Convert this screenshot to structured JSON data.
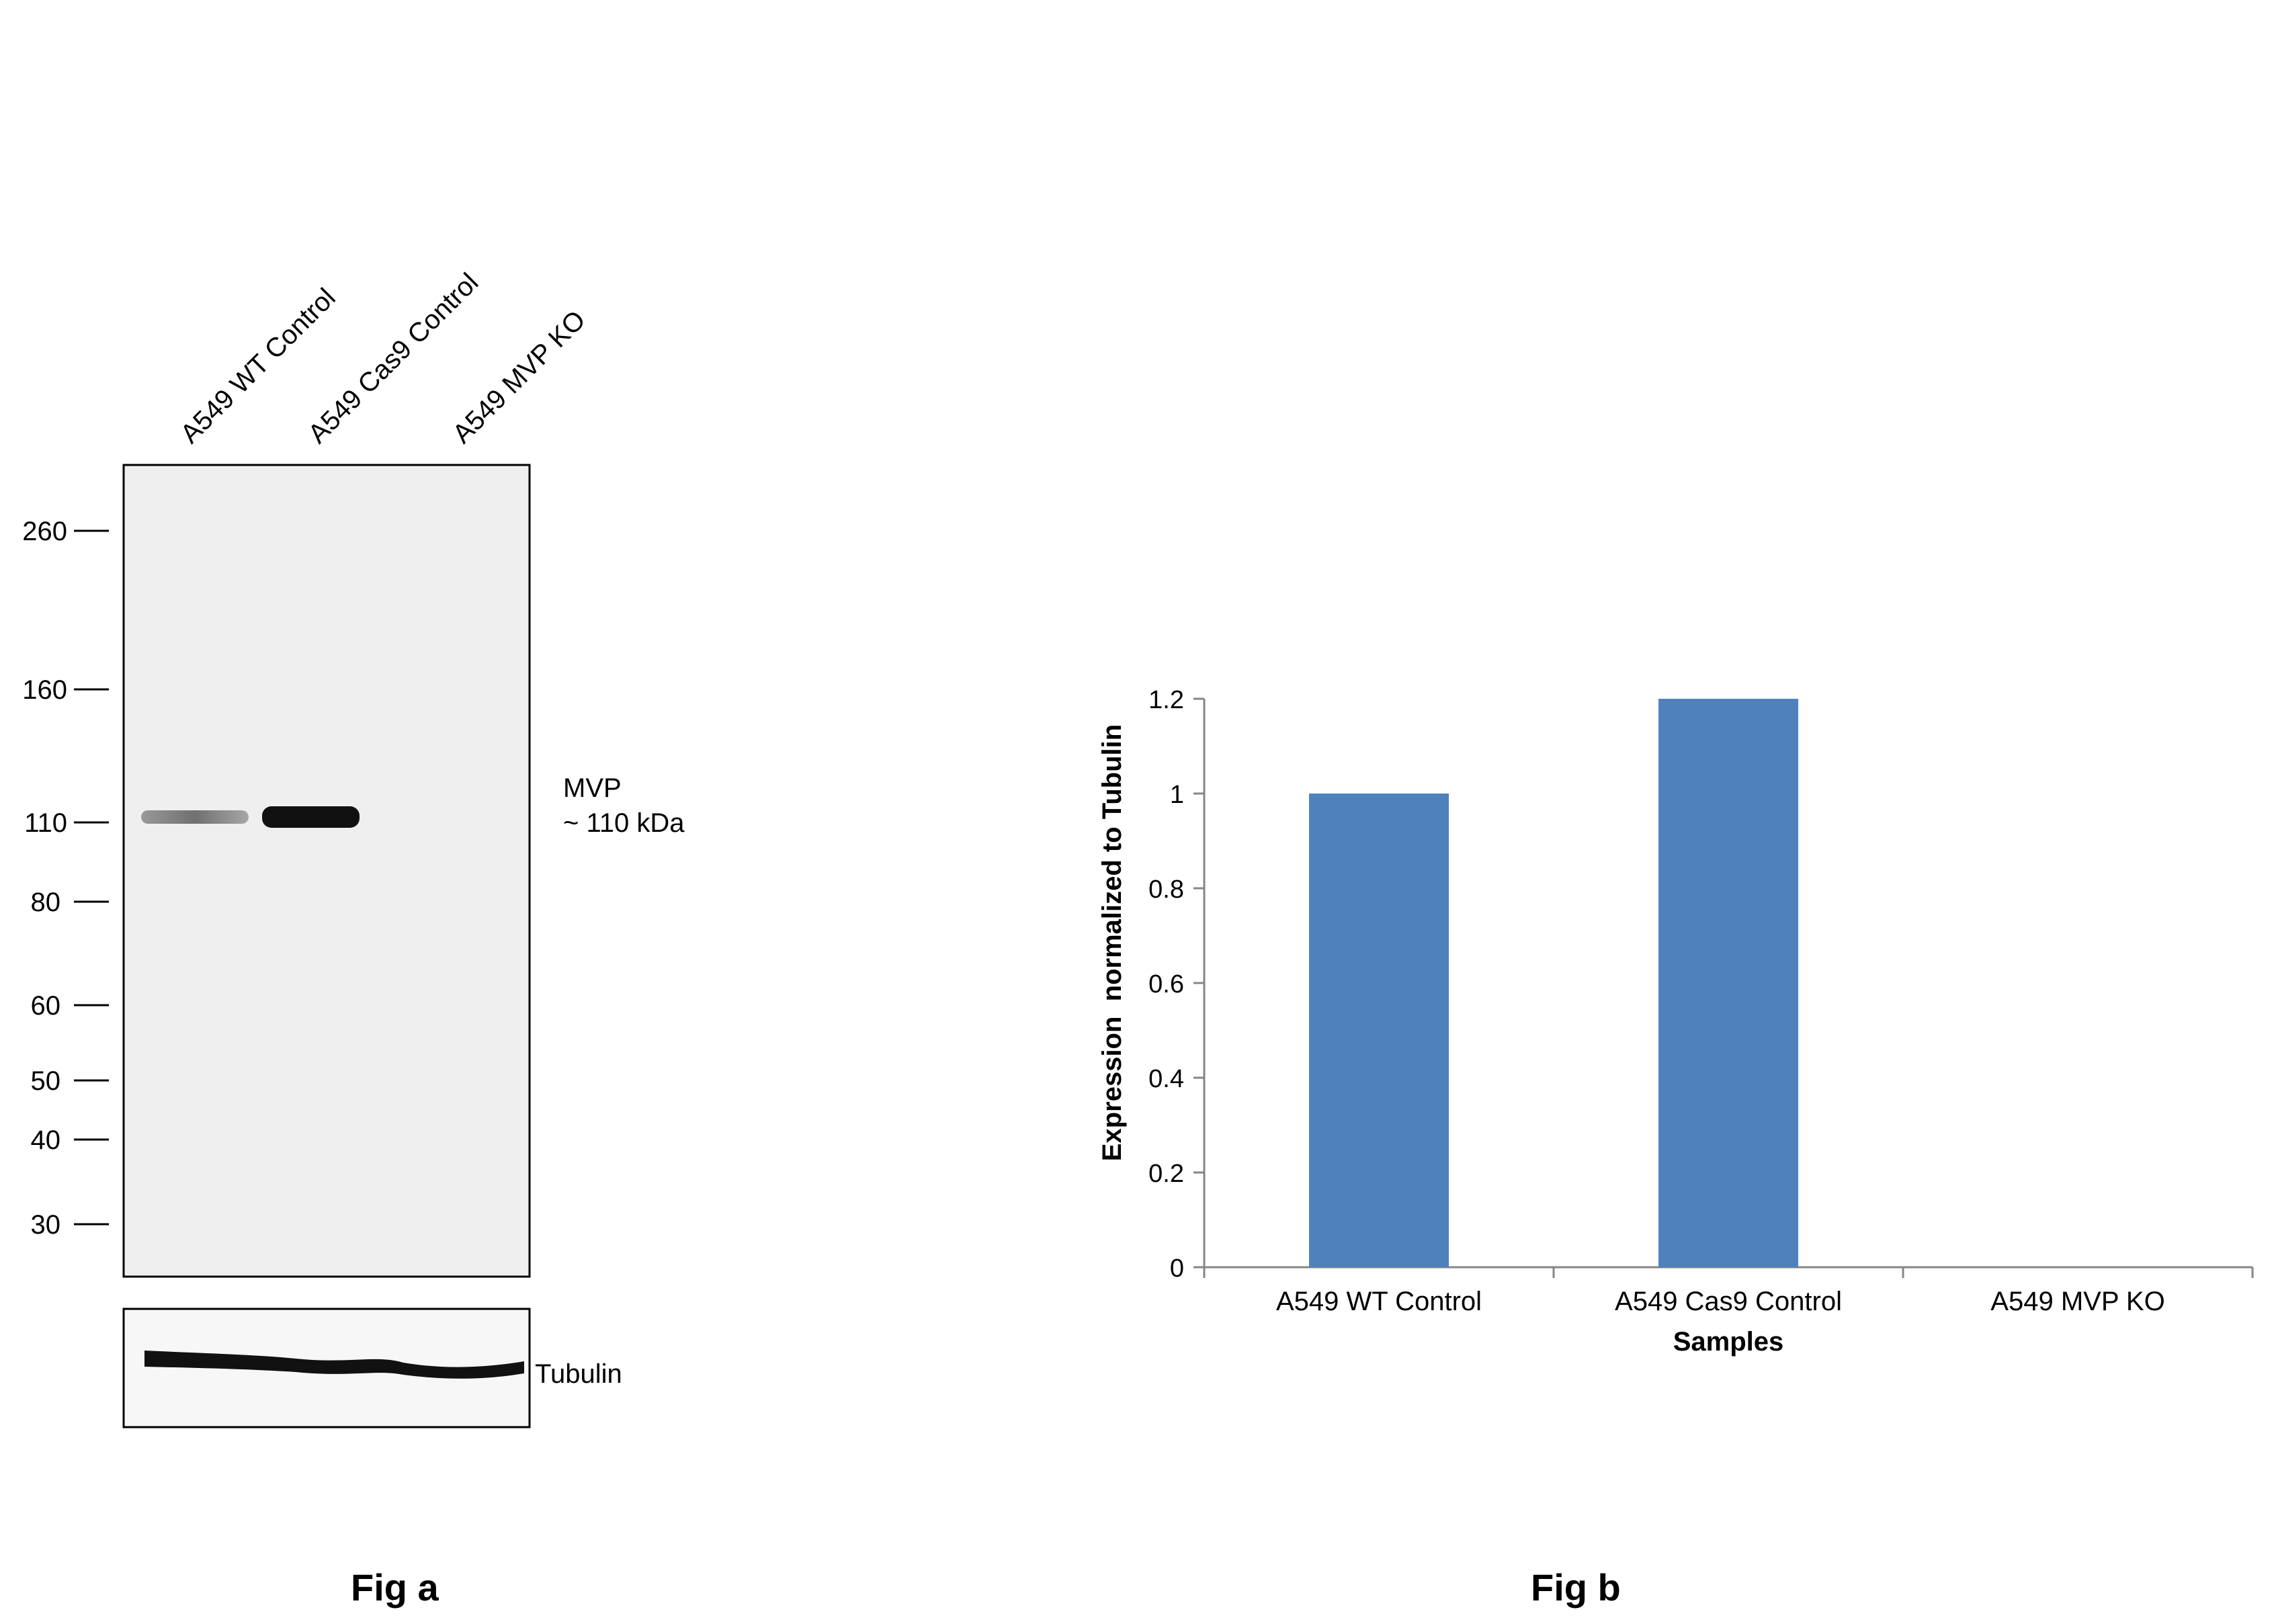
{
  "fig_a": {
    "caption": "Fig a",
    "lane_labels": [
      "A549 WT Control",
      "A549 Cas9 Control",
      "A549 MVP KO"
    ],
    "mw_markers": [
      "260",
      "160",
      "110",
      "80",
      "60",
      "50",
      "40",
      "30"
    ],
    "band_label_line1": "MVP",
    "band_label_line2": "~ 110 kDa",
    "loading_label": "Tubulin"
  },
  "fig_b": {
    "caption": "Fig b"
  },
  "chart_data": {
    "type": "bar",
    "categories": [
      "A549 WT Control",
      "A549 Cas9 Control",
      "A549 MVP KO"
    ],
    "values": [
      1.0,
      1.2,
      0
    ],
    "xlabel": "Samples",
    "ylabel": "Expression  normalized to Tubulin",
    "ylim": [
      0,
      1.2
    ],
    "yticks": [
      "0",
      "0.2",
      "0.4",
      "0.6",
      "0.8",
      "1",
      "1.2"
    ],
    "grid": false,
    "legend": "none",
    "bar_color": "#4f81bd"
  }
}
